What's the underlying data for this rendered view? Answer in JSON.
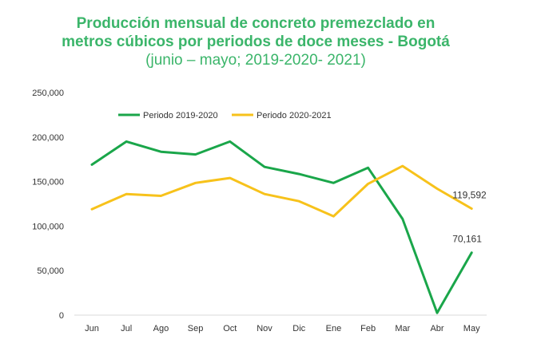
{
  "chart_data": {
    "type": "line",
    "title_line1": "Producción mensual de concreto premezclado en",
    "title_line2": "metros cúbicos por periodos de doce meses - Bogotá",
    "subtitle": "(junio – mayo; 2019-2020- 2021)",
    "categories": [
      "Jun",
      "Jul",
      "Ago",
      "Sep",
      "Oct",
      "Nov",
      "Dic",
      "Ene",
      "Feb",
      "Mar",
      "Abr",
      "May"
    ],
    "y_ticks": [
      "0",
      "50,000",
      "100,000",
      "150,000",
      "200,000",
      "250,000"
    ],
    "ylim": [
      0,
      250000
    ],
    "grid": false,
    "legend_position": "top-left",
    "series": [
      {
        "name": "Periodo 2019-2020",
        "color": "#1aa64a",
        "values": [
          169000,
          195000,
          183500,
          180500,
          195000,
          166500,
          158500,
          148500,
          165500,
          108000,
          2500,
          70161
        ]
      },
      {
        "name": "Periodo 2020-2021",
        "color": "#f7c21b",
        "values": [
          119000,
          136000,
          134000,
          148500,
          154000,
          136000,
          128000,
          111000,
          147500,
          167500,
          142000,
          119592
        ]
      }
    ],
    "data_labels": [
      {
        "series": 1,
        "index": 11,
        "text": "119,592"
      },
      {
        "series": 0,
        "index": 11,
        "text": "70,161"
      }
    ]
  }
}
